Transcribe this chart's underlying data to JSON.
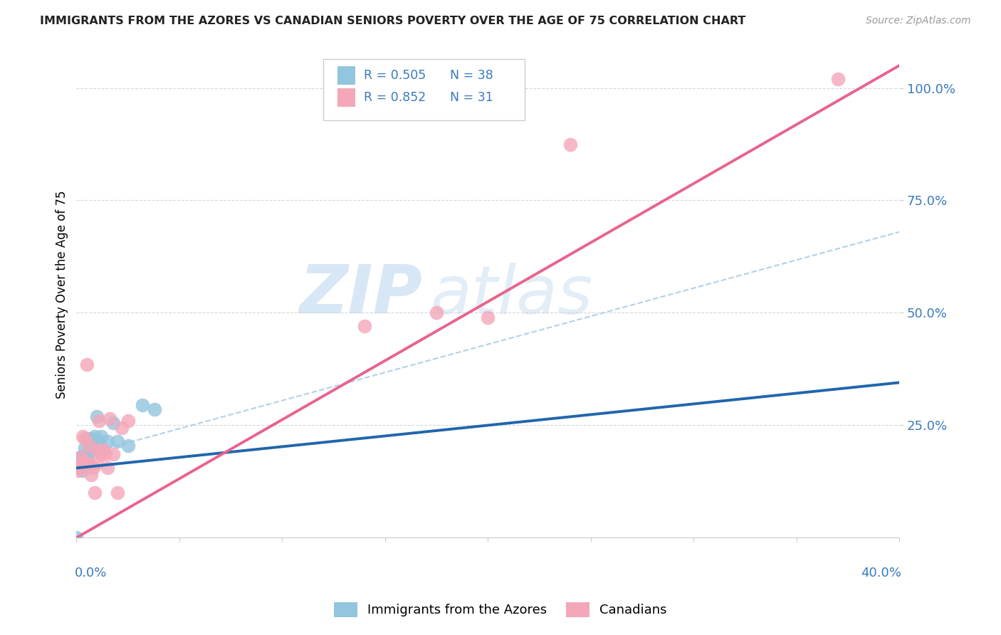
{
  "title": "IMMIGRANTS FROM THE AZORES VS CANADIAN SENIORS POVERTY OVER THE AGE OF 75 CORRELATION CHART",
  "source": "Source: ZipAtlas.com",
  "ylabel": "Seniors Poverty Over the Age of 75",
  "xlim": [
    0.0,
    0.4
  ],
  "ylim": [
    0.0,
    1.08
  ],
  "yticks": [
    0.25,
    0.5,
    0.75,
    1.0
  ],
  "ytick_labels": [
    "25.0%",
    "50.0%",
    "75.0%",
    "100.0%"
  ],
  "color_blue": "#92c5de",
  "color_pink": "#f4a7b9",
  "line_blue": "#2166ac",
  "line_pink": "#e8648c",
  "line_blue_dash": "#aacbe8",
  "watermark_zip": "ZIP",
  "watermark_atlas": "atlas",
  "blue_scatter_x": [
    0.0,
    0.001,
    0.001,
    0.001,
    0.001,
    0.002,
    0.002,
    0.002,
    0.002,
    0.002,
    0.003,
    0.003,
    0.003,
    0.003,
    0.003,
    0.003,
    0.004,
    0.004,
    0.004,
    0.005,
    0.005,
    0.005,
    0.005,
    0.006,
    0.006,
    0.007,
    0.007,
    0.008,
    0.009,
    0.01,
    0.011,
    0.012,
    0.015,
    0.018,
    0.02,
    0.025,
    0.032,
    0.038
  ],
  "blue_scatter_y": [
    0.0,
    0.155,
    0.165,
    0.17,
    0.175,
    0.155,
    0.16,
    0.17,
    0.175,
    0.18,
    0.15,
    0.155,
    0.165,
    0.17,
    0.175,
    0.18,
    0.16,
    0.175,
    0.2,
    0.165,
    0.175,
    0.185,
    0.22,
    0.19,
    0.215,
    0.2,
    0.22,
    0.2,
    0.225,
    0.27,
    0.215,
    0.225,
    0.215,
    0.255,
    0.215,
    0.205,
    0.295,
    0.285
  ],
  "pink_scatter_x": [
    0.001,
    0.001,
    0.002,
    0.002,
    0.003,
    0.003,
    0.004,
    0.004,
    0.005,
    0.006,
    0.006,
    0.007,
    0.008,
    0.009,
    0.01,
    0.01,
    0.011,
    0.012,
    0.013,
    0.014,
    0.015,
    0.016,
    0.018,
    0.02,
    0.022,
    0.025,
    0.14,
    0.175,
    0.2,
    0.24,
    0.37
  ],
  "pink_scatter_y": [
    0.15,
    0.16,
    0.155,
    0.18,
    0.165,
    0.225,
    0.17,
    0.22,
    0.385,
    0.165,
    0.205,
    0.14,
    0.155,
    0.1,
    0.165,
    0.195,
    0.26,
    0.185,
    0.195,
    0.185,
    0.155,
    0.265,
    0.185,
    0.1,
    0.245,
    0.26,
    0.47,
    0.5,
    0.49,
    0.875,
    1.02
  ],
  "blue_line_x0": 0.0,
  "blue_line_x1": 0.4,
  "blue_line_y0": 0.155,
  "blue_line_y1": 0.345,
  "pink_line_x0": 0.0,
  "pink_line_x1": 0.4,
  "pink_line_y0": 0.0,
  "pink_line_y1": 1.05,
  "dash_line_x0": 0.0,
  "dash_line_x1": 0.4,
  "dash_line_y0": 0.18,
  "dash_line_y1": 0.68
}
